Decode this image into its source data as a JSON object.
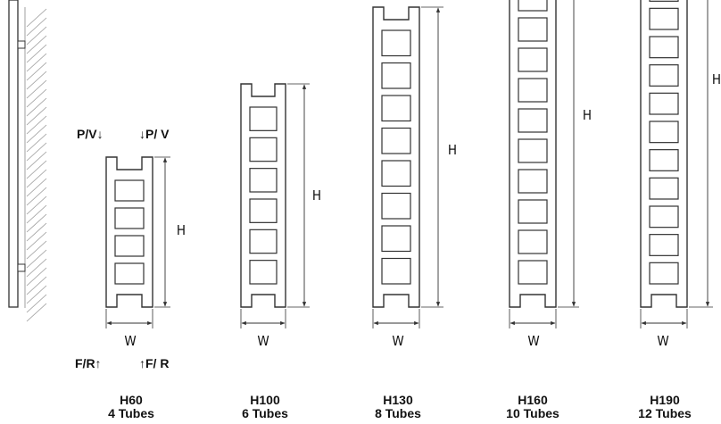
{
  "side_view": {
    "label": ""
  },
  "connections": {
    "top_left": "P/V↓",
    "top_right": "↓P/ V",
    "bottom_left": "F/R↑",
    "bottom_right": "↑F/ R"
  },
  "models": [
    {
      "code": "H60",
      "tubes": "4 Tubes",
      "height_symbol": "H",
      "width_symbol": "W",
      "cells": 4
    },
    {
      "code": "H100",
      "tubes": "6 Tubes",
      "height_symbol": "H",
      "width_symbol": "W",
      "cells": 6
    },
    {
      "code": "H130",
      "tubes": "8 Tubes",
      "height_symbol": "H",
      "width_symbol": "W",
      "cells": 8
    },
    {
      "code": "H160",
      "tubes": "10 Tubes",
      "height_symbol": "H",
      "width_symbol": "W",
      "cells": 10
    },
    {
      "code": "H190",
      "tubes": "12 Tubes",
      "height_symbol": "H",
      "width_symbol": "W",
      "cells": 12
    }
  ],
  "colors": {
    "line": "#333333",
    "hatch": "#999999"
  }
}
